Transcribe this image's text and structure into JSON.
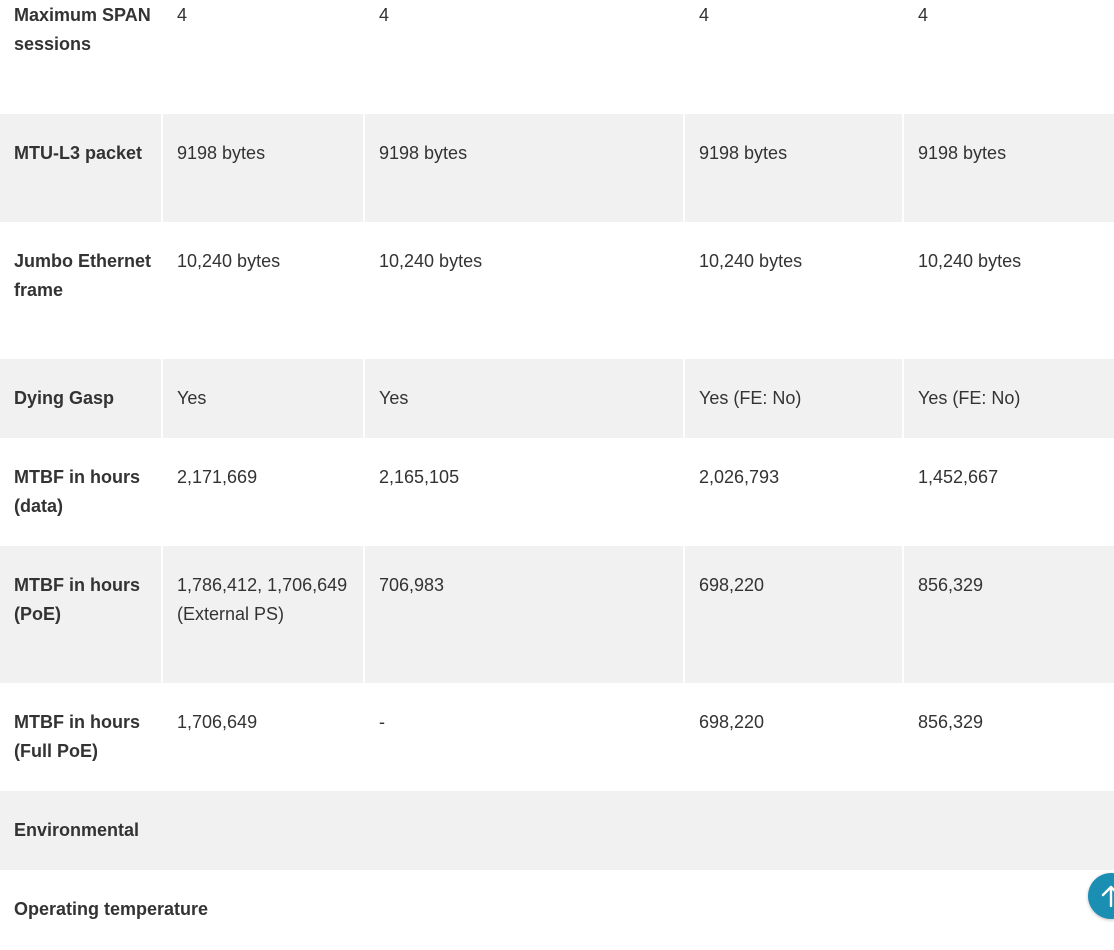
{
  "rows": [
    {
      "label": "Maximum SPAN sessions",
      "values": [
        "4",
        "4",
        "4",
        "4"
      ]
    },
    {
      "label": "MTU-L3 packet",
      "values": [
        "9198 bytes",
        "9198 bytes",
        "9198 bytes",
        "9198 bytes"
      ]
    },
    {
      "label": "Jumbo Ethernet frame",
      "values": [
        "10,240 bytes",
        "10,240 bytes",
        "10,240 bytes",
        "10,240 bytes"
      ]
    },
    {
      "label": "Dying Gasp",
      "values": [
        "Yes",
        "Yes",
        "Yes (FE: No)",
        "Yes (FE: No)"
      ]
    },
    {
      "label": "MTBF in hours (data)",
      "values": [
        "2,171,669",
        "2,165,105",
        "2,026,793",
        "1,452,667"
      ]
    },
    {
      "label": "MTBF in hours (PoE)",
      "values": [
        "1,786,412, 1,706,649 (External PS)",
        "706,983",
        "698,220",
        "856,329"
      ]
    },
    {
      "label": "MTBF in hours (Full PoE)",
      "values": [
        "1,706,649",
        "-",
        "698,220",
        "856,329"
      ]
    }
  ],
  "sections": {
    "environmental": "Environmental",
    "operating_temperature": "Operating temperature"
  },
  "scroll_top_button": {
    "icon": "arrow-up-icon",
    "color": "#1a8fb3"
  }
}
